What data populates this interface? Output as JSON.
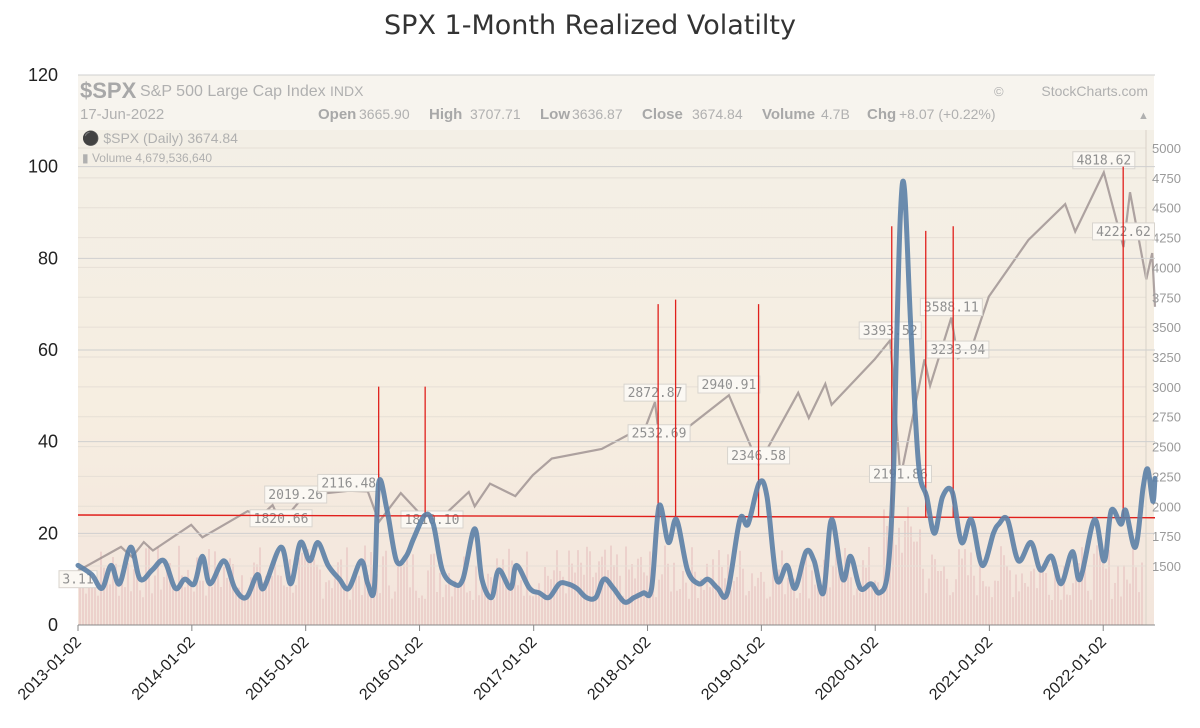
{
  "chart_data": {
    "type": "line",
    "title": "SPX 1-Month Realized Volatilty",
    "xlabel": "",
    "ylabel": "",
    "ylim": [
      0,
      120
    ],
    "yticks": [
      0,
      20,
      40,
      60,
      80,
      100,
      120
    ],
    "xlim": [
      "2013-01-02",
      "2022-06-17"
    ],
    "xticks": [
      "2013-01-02",
      "2014-01-02",
      "2015-01-02",
      "2016-01-02",
      "2017-01-02",
      "2018-01-02",
      "2019-01-02",
      "2020-01-02",
      "2021-01-02",
      "2022-01-02"
    ],
    "grid": true,
    "series": [
      {
        "color": "#5b7fa6",
        "points": [
          [
            "2013-01-02",
            13
          ],
          [
            "2013-02-15",
            11
          ],
          [
            "2013-03-20",
            8
          ],
          [
            "2013-04-18",
            13
          ],
          [
            "2013-05-15",
            9
          ],
          [
            "2013-06-20",
            17
          ],
          [
            "2013-07-20",
            10
          ],
          [
            "2013-08-28",
            12
          ],
          [
            "2013-10-05",
            14
          ],
          [
            "2013-11-10",
            8
          ],
          [
            "2013-12-10",
            10
          ],
          [
            "2014-01-10",
            9
          ],
          [
            "2014-02-05",
            15
          ],
          [
            "2014-03-01",
            9
          ],
          [
            "2014-04-15",
            14
          ],
          [
            "2014-05-20",
            8
          ],
          [
            "2014-06-25",
            6
          ],
          [
            "2014-07-31",
            11
          ],
          [
            "2014-08-20",
            8
          ],
          [
            "2014-10-15",
            17
          ],
          [
            "2014-11-15",
            9
          ],
          [
            "2014-12-16",
            18
          ],
          [
            "2015-01-15",
            14
          ],
          [
            "2015-02-10",
            18
          ],
          [
            "2015-03-15",
            13
          ],
          [
            "2015-04-20",
            10
          ],
          [
            "2015-05-20",
            8
          ],
          [
            "2015-06-29",
            14
          ],
          [
            "2015-07-20",
            9
          ],
          [
            "2015-08-10",
            8
          ],
          [
            "2015-08-24",
            31
          ],
          [
            "2015-09-20",
            25
          ],
          [
            "2015-10-20",
            14
          ],
          [
            "2015-11-20",
            15
          ],
          [
            "2015-12-15",
            19
          ],
          [
            "2016-01-20",
            24
          ],
          [
            "2016-02-15",
            22
          ],
          [
            "2016-03-15",
            12
          ],
          [
            "2016-04-20",
            9
          ],
          [
            "2016-05-20",
            10
          ],
          [
            "2016-06-27",
            21
          ],
          [
            "2016-07-20",
            10
          ],
          [
            "2016-08-20",
            6
          ],
          [
            "2016-09-12",
            12
          ],
          [
            "2016-10-20",
            8
          ],
          [
            "2016-11-08",
            13
          ],
          [
            "2016-12-20",
            8
          ],
          [
            "2017-01-20",
            7
          ],
          [
            "2017-02-20",
            6
          ],
          [
            "2017-03-25",
            9
          ],
          [
            "2017-04-20",
            9
          ],
          [
            "2017-05-20",
            8
          ],
          [
            "2017-06-20",
            6
          ],
          [
            "2017-07-20",
            6
          ],
          [
            "2017-08-15",
            10
          ],
          [
            "2017-09-15",
            8
          ],
          [
            "2017-10-20",
            5
          ],
          [
            "2017-11-20",
            6
          ],
          [
            "2017-12-20",
            7
          ],
          [
            "2018-01-15",
            8
          ],
          [
            "2018-02-08",
            26
          ],
          [
            "2018-03-10",
            18
          ],
          [
            "2018-04-05",
            23
          ],
          [
            "2018-05-10",
            12
          ],
          [
            "2018-06-15",
            9
          ],
          [
            "2018-07-15",
            10
          ],
          [
            "2018-08-15",
            8
          ],
          [
            "2018-09-15",
            7
          ],
          [
            "2018-10-25",
            23
          ],
          [
            "2018-11-20",
            22
          ],
          [
            "2018-12-26",
            31
          ],
          [
            "2019-01-20",
            28
          ],
          [
            "2019-02-20",
            10
          ],
          [
            "2019-03-25",
            13
          ],
          [
            "2019-04-20",
            8
          ],
          [
            "2019-05-25",
            16
          ],
          [
            "2019-06-20",
            14
          ],
          [
            "2019-07-20",
            7
          ],
          [
            "2019-08-15",
            23
          ],
          [
            "2019-09-20",
            10
          ],
          [
            "2019-10-15",
            15
          ],
          [
            "2019-11-15",
            8
          ],
          [
            "2019-12-20",
            9
          ],
          [
            "2020-01-15",
            7
          ],
          [
            "2020-02-10",
            11
          ],
          [
            "2020-02-28",
            30
          ],
          [
            "2020-03-10",
            60
          ],
          [
            "2020-03-23",
            90
          ],
          [
            "2020-04-05",
            95
          ],
          [
            "2020-04-25",
            65
          ],
          [
            "2020-05-20",
            35
          ],
          [
            "2020-06-15",
            28
          ],
          [
            "2020-07-10",
            20
          ],
          [
            "2020-08-05",
            28
          ],
          [
            "2020-09-05",
            29
          ],
          [
            "2020-10-05",
            18
          ],
          [
            "2020-11-05",
            23
          ],
          [
            "2020-12-10",
            13
          ],
          [
            "2021-01-15",
            20
          ],
          [
            "2021-02-01",
            22
          ],
          [
            "2021-03-01",
            23
          ],
          [
            "2021-04-05",
            14
          ],
          [
            "2021-05-15",
            18
          ],
          [
            "2021-06-15",
            12
          ],
          [
            "2021-07-20",
            15
          ],
          [
            "2021-08-20",
            9
          ],
          [
            "2021-09-25",
            16
          ],
          [
            "2021-10-20",
            10
          ],
          [
            "2021-12-05",
            23
          ],
          [
            "2022-01-05",
            14
          ],
          [
            "2022-01-28",
            25
          ],
          [
            "2022-02-28",
            22
          ],
          [
            "2022-03-15",
            25
          ],
          [
            "2022-04-15",
            17
          ],
          [
            "2022-05-10",
            30
          ],
          [
            "2022-05-25",
            34
          ],
          [
            "2022-06-10",
            27
          ],
          [
            "2022-06-17",
            32
          ]
        ]
      }
    ],
    "reference_line": {
      "y": 24,
      "color": "#e0201c"
    },
    "vertical_markers": {
      "color": "#e0201c",
      "dates": [
        "2015-08-24",
        "2016-01-20",
        "2018-02-05",
        "2018-04-02",
        "2018-12-24",
        "2020-02-24",
        "2020-06-12",
        "2020-09-08",
        "2022-03-07"
      ]
    },
    "background_image": {
      "symbol": "$SPX",
      "name": "S&P 500 Large Cap Index",
      "exchange": "INDX",
      "source": "StockCharts.com",
      "date": "17-Jun-2022",
      "ohlc": [
        {
          "label": "Open",
          "value": "3665.90"
        },
        {
          "label": "High",
          "value": "3707.71"
        },
        {
          "label": "Low",
          "value": "3636.87"
        },
        {
          "label": "Close",
          "value": "3674.84"
        },
        {
          "label": "Volume",
          "value": "4.7B"
        },
        {
          "label": "Chg",
          "value": "+8.07 (+0.22%)"
        }
      ],
      "legend_price": "$SPX (Daily) 3674.84",
      "legend_volume": "Volume 4,679,536,640",
      "price_axis": [
        1500,
        1750,
        2000,
        2250,
        2500,
        2750,
        3000,
        3250,
        3500,
        3750,
        4000,
        4250,
        4500,
        4750,
        5000
      ],
      "annotations": [
        {
          "text": "2019.26",
          "date": "2014-12-01",
          "price": 2019
        },
        {
          "text": "1820.66",
          "date": "2014-10-15",
          "price": 1820
        },
        {
          "text": "2116.48",
          "date": "2015-05-20",
          "price": 2116
        },
        {
          "text": "1810.10",
          "date": "2016-02-11",
          "price": 1810
        },
        {
          "text": "2872.87",
          "date": "2018-01-26",
          "price": 2872
        },
        {
          "text": "2532.69",
          "date": "2018-02-08",
          "price": 2532
        },
        {
          "text": "2940.91",
          "date": "2018-09-20",
          "price": 2940
        },
        {
          "text": "2346.58",
          "date": "2018-12-24",
          "price": 2346
        },
        {
          "text": "3393.52",
          "date": "2020-02-19",
          "price": 3393
        },
        {
          "text": "2191.86",
          "date": "2020-03-23",
          "price": 2191
        },
        {
          "text": "3588.11",
          "date": "2020-09-02",
          "price": 3588
        },
        {
          "text": "3233.94",
          "date": "2020-09-23",
          "price": 3233
        },
        {
          "text": "4818.62",
          "date": "2022-01-04",
          "price": 4818
        },
        {
          "text": "4222.62",
          "date": "2022-03-08",
          "price": 4222
        },
        {
          "text": "3.11",
          "date": "2013-01-02",
          "price": 1310
        }
      ],
      "price_series": [
        [
          "2013-01-02",
          1460
        ],
        [
          "2013-05-20",
          1660
        ],
        [
          "2013-06-24",
          1575
        ],
        [
          "2013-08-01",
          1700
        ],
        [
          "2013-08-30",
          1630
        ],
        [
          "2013-12-31",
          1845
        ],
        [
          "2014-02-05",
          1740
        ],
        [
          "2014-06-30",
          1960
        ],
        [
          "2014-08-07",
          1910
        ],
        [
          "2014-09-18",
          2010
        ],
        [
          "2014-10-15",
          1860
        ],
        [
          "2014-12-29",
          2090
        ],
        [
          "2015-05-20",
          2130
        ],
        [
          "2015-07-20",
          2125
        ],
        [
          "2015-08-25",
          1870
        ],
        [
          "2015-11-03",
          2110
        ],
        [
          "2016-02-11",
          1830
        ],
        [
          "2016-06-08",
          2120
        ],
        [
          "2016-06-27",
          2000
        ],
        [
          "2016-08-15",
          2190
        ],
        [
          "2016-11-04",
          2085
        ],
        [
          "2016-12-30",
          2260
        ],
        [
          "2017-03-01",
          2400
        ],
        [
          "2017-08-08",
          2480
        ],
        [
          "2017-12-29",
          2680
        ],
        [
          "2018-01-26",
          2873
        ],
        [
          "2018-02-08",
          2580
        ],
        [
          "2018-04-02",
          2580
        ],
        [
          "2018-09-20",
          2930
        ],
        [
          "2018-12-24",
          2350
        ],
        [
          "2019-04-30",
          2950
        ],
        [
          "2019-06-03",
          2740
        ],
        [
          "2019-07-26",
          3025
        ],
        [
          "2019-08-15",
          2850
        ],
        [
          "2019-12-31",
          3230
        ],
        [
          "2020-02-19",
          3390
        ],
        [
          "2020-03-23",
          2240
        ],
        [
          "2020-06-08",
          3230
        ],
        [
          "2020-06-26",
          3010
        ],
        [
          "2020-09-02",
          3580
        ],
        [
          "2020-09-23",
          3240
        ],
        [
          "2020-10-30",
          3270
        ],
        [
          "2020-12-31",
          3756
        ],
        [
          "2021-05-07",
          4230
        ],
        [
          "2021-09-02",
          4530
        ],
        [
          "2021-10-04",
          4300
        ],
        [
          "2022-01-04",
          4796
        ],
        [
          "2022-03-08",
          4170
        ],
        [
          "2022-03-29",
          4630
        ],
        [
          "2022-05-20",
          3900
        ],
        [
          "2022-06-08",
          4120
        ],
        [
          "2022-06-17",
          3670
        ]
      ]
    }
  }
}
